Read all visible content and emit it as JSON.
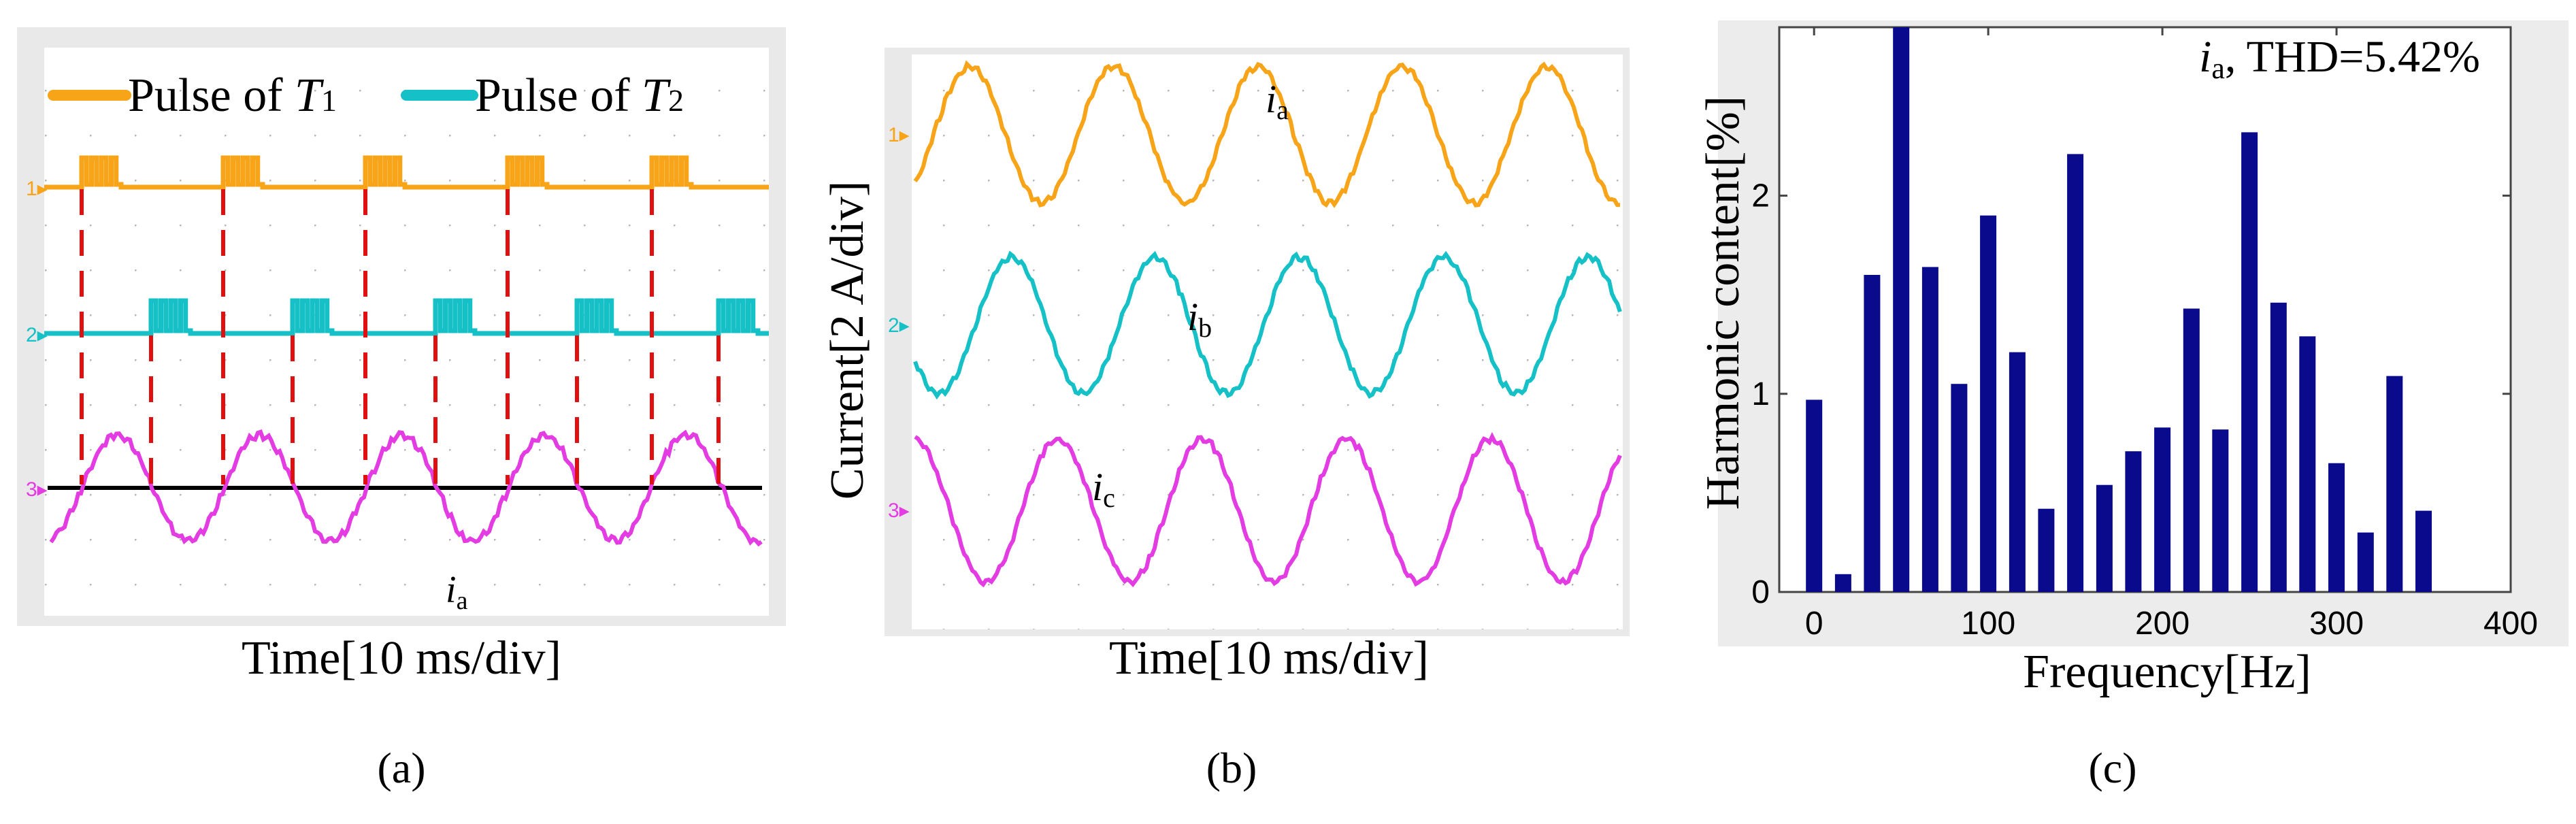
{
  "figure": {
    "panels": [
      {
        "id": "a",
        "caption": "(a)"
      },
      {
        "id": "b",
        "caption": "(b)"
      },
      {
        "id": "c",
        "caption": "(c)"
      }
    ]
  },
  "panel_a": {
    "legend": [
      {
        "text": "Pulse of ",
        "sym": "T",
        "sub": "1",
        "color": "#f7a418"
      },
      {
        "text": "Pulse of ",
        "sym": "T",
        "sub": "2",
        "color": "#15c1c6"
      }
    ],
    "xlabel": "Time[10 ms/div]",
    "signal_label": {
      "sym": "i",
      "sub": "a"
    },
    "channels": [
      {
        "marker": "1",
        "color": "#f7a418"
      },
      {
        "marker": "2",
        "color": "#15c1c6"
      },
      {
        "marker": "3",
        "color": "#e23ce2"
      }
    ]
  },
  "panel_b": {
    "ylabel": "Current[2 A/div]",
    "xlabel": "Time[10 ms/div]",
    "signals": [
      {
        "sym": "i",
        "sub": "a",
        "marker": "1",
        "color": "#f7a418"
      },
      {
        "sym": "i",
        "sub": "b",
        "marker": "2",
        "color": "#15c1c6"
      },
      {
        "sym": "i",
        "sub": "c",
        "marker": "3",
        "color": "#e23ce2"
      }
    ]
  },
  "chart_data": {
    "type": "bar",
    "title_sym": "i",
    "title_sub": "a",
    "title_rest": ", THD=5.42%",
    "xlabel": "Frequency[Hz]",
    "ylabel": "Harmonic content[%]",
    "xlim": [
      -20,
      400
    ],
    "ylim": [
      0,
      2.85
    ],
    "xticks": [
      "0",
      "100",
      "200",
      "300",
      "400"
    ],
    "xtick_values": [
      0,
      100,
      200,
      300,
      400
    ],
    "yticks": [
      "0",
      "1",
      "2"
    ],
    "ytick_values": [
      0,
      1,
      2
    ],
    "bar_color": "#0a0a8c",
    "x": [
      0,
      16.7,
      33.3,
      50,
      66.7,
      83.3,
      100,
      116.7,
      133.3,
      150,
      166.7,
      183.3,
      200,
      216.7,
      233.3,
      250,
      266.7,
      283.3,
      300,
      316.7,
      333.3,
      350
    ],
    "values": [
      0.97,
      0.09,
      1.6,
      2.95,
      1.64,
      1.05,
      1.9,
      1.21,
      0.42,
      2.21,
      0.54,
      0.71,
      0.83,
      1.43,
      0.82,
      2.32,
      1.46,
      1.29,
      0.65,
      0.3,
      1.09,
      0.41
    ]
  }
}
